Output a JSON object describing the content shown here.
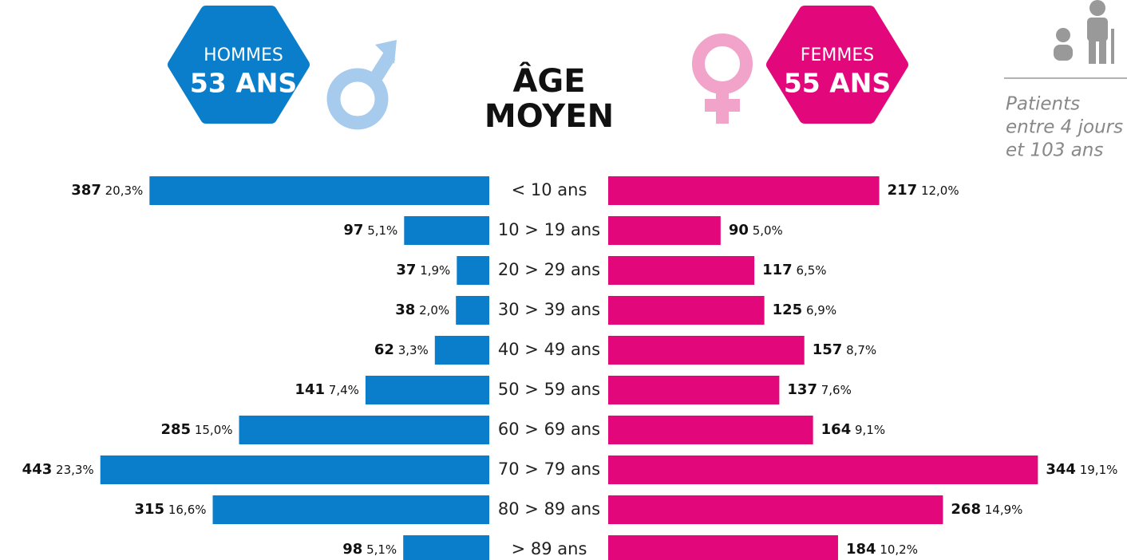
{
  "header": {
    "men_label": "HOMMES",
    "men_age": "53 ANS",
    "title_line1": "ÂGE",
    "title_line2": "MOYEN",
    "women_label": "FEMMES",
    "women_age": "55 ANS",
    "note": [
      "Patients",
      "entre 4 jours",
      "et 103 ans"
    ]
  },
  "chart_data": {
    "type": "butterfly-bar",
    "categories": [
      "< 10 ans",
      "10 > 19 ans",
      "20 > 29 ans",
      "30 > 39 ans",
      "40 > 49 ans",
      "50 > 59 ans",
      "60 > 69 ans",
      "70 > 79 ans",
      "80 > 89 ans",
      "> 89 ans"
    ],
    "series": [
      {
        "name": "HOMMES",
        "color": "#0a7ecb",
        "side": "left",
        "xlim": [
          0,
          500
        ],
        "values": [
          387,
          97,
          37,
          38,
          62,
          141,
          285,
          443,
          315,
          98
        ],
        "percents": [
          20.3,
          5.1,
          1.9,
          2.0,
          3.3,
          7.4,
          15.0,
          23.3,
          16.6,
          5.1
        ],
        "percent_labels": [
          "20,3%",
          "5,1%",
          "1,9%",
          "2,0%",
          "3,3%",
          "7,4%",
          "15,0%",
          "23,3%",
          "16,6%",
          "5,1%"
        ]
      },
      {
        "name": "FEMMES",
        "color": "#e2087c",
        "side": "right",
        "xlim": [
          0,
          400
        ],
        "values": [
          217,
          90,
          117,
          125,
          157,
          137,
          164,
          344,
          268,
          184
        ],
        "percents": [
          12.0,
          5.0,
          6.5,
          6.9,
          8.7,
          7.6,
          9.1,
          19.1,
          14.9,
          10.2
        ],
        "percent_labels": [
          "12,0%",
          "5,0%",
          "6,5%",
          "6,9%",
          "8,7%",
          "7,6%",
          "9,1%",
          "19,1%",
          "14,9%",
          "10,2%"
        ]
      }
    ]
  }
}
